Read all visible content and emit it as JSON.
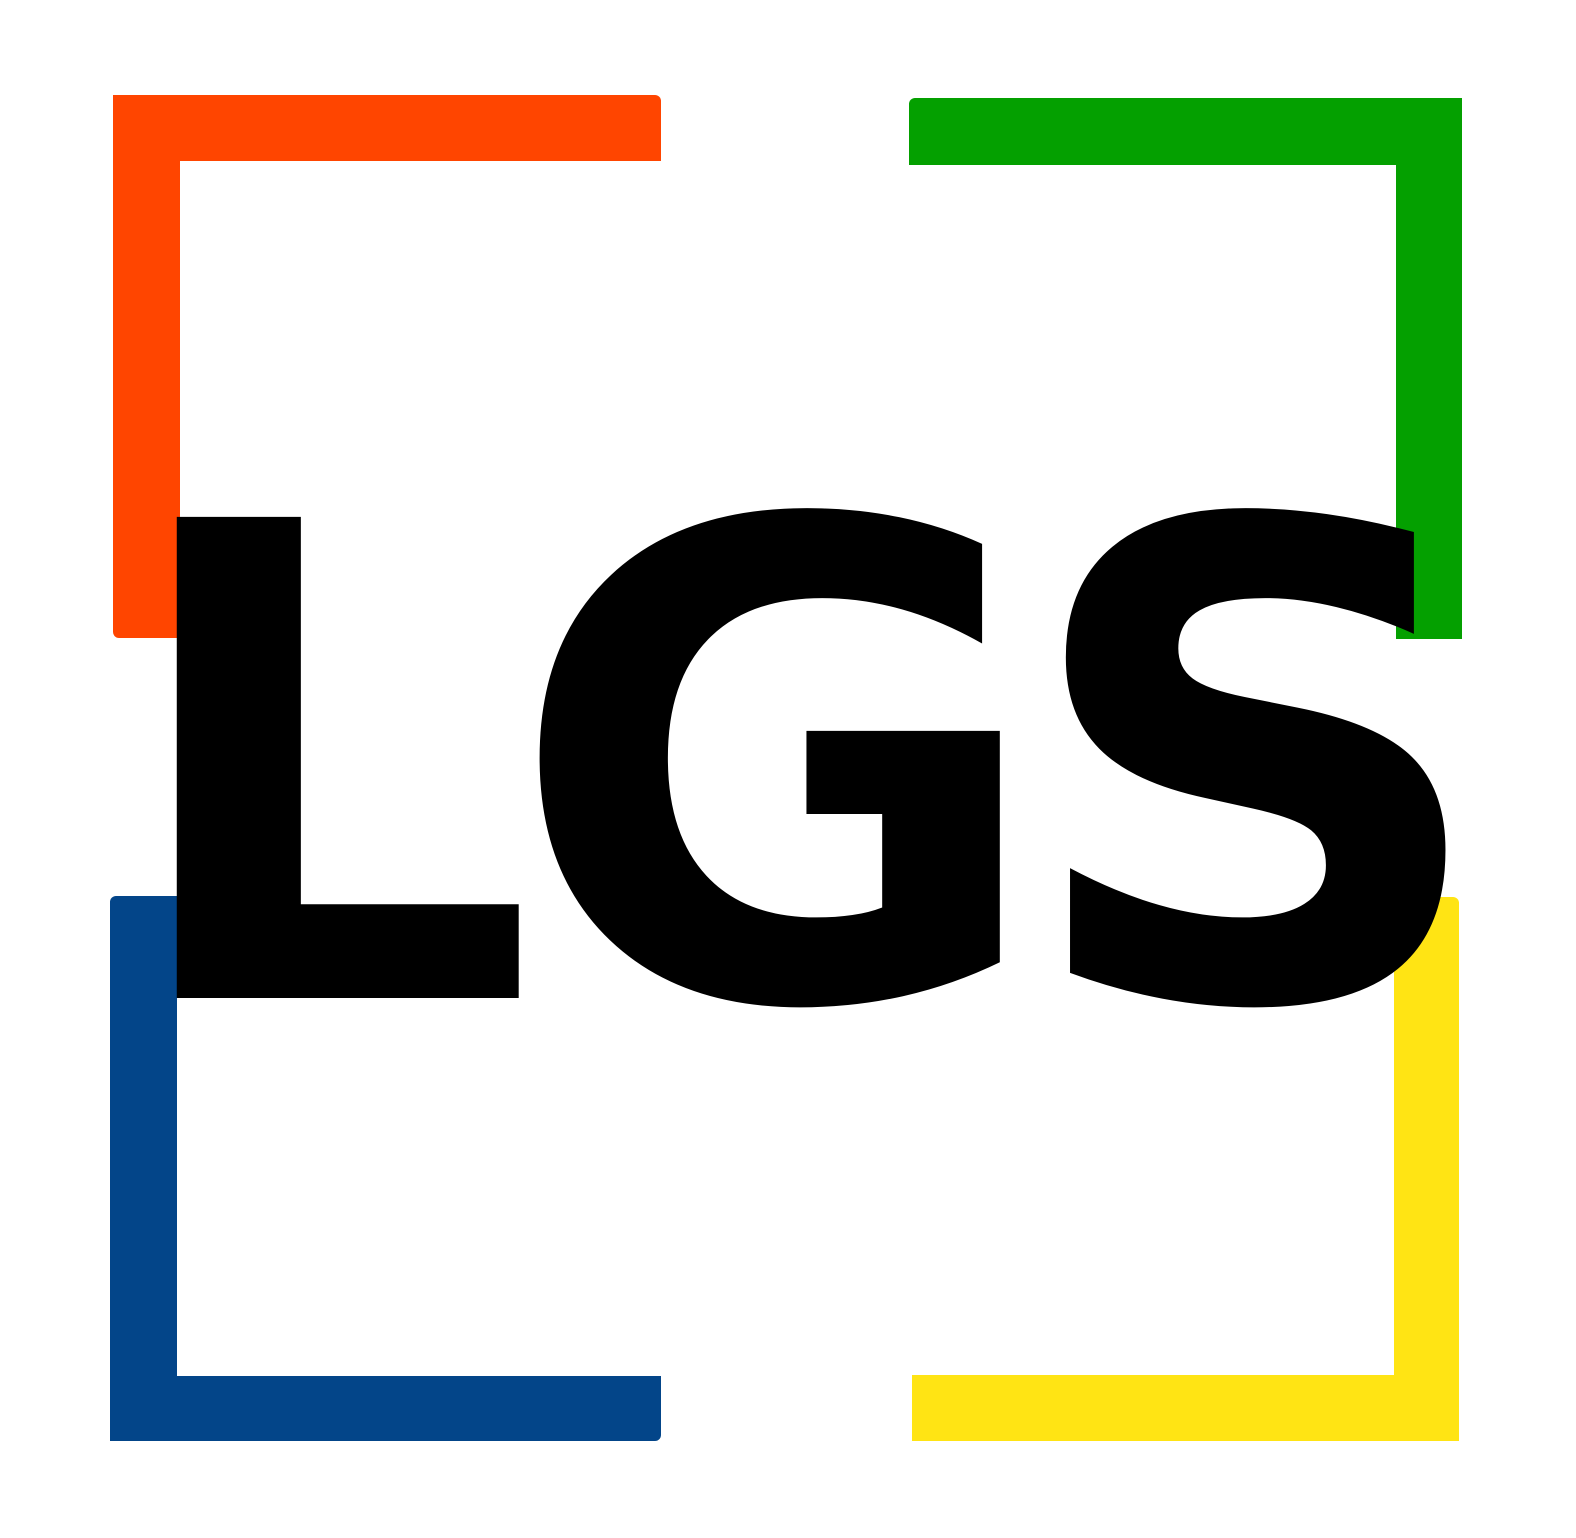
{
  "logo": {
    "text": "LGS",
    "text_color": "#000000",
    "background_color": "#ffffff",
    "brackets": {
      "top_left": "#ff4500",
      "top_right": "#04a000",
      "bottom_left": "#034589",
      "bottom_right": "#ffe414"
    }
  }
}
